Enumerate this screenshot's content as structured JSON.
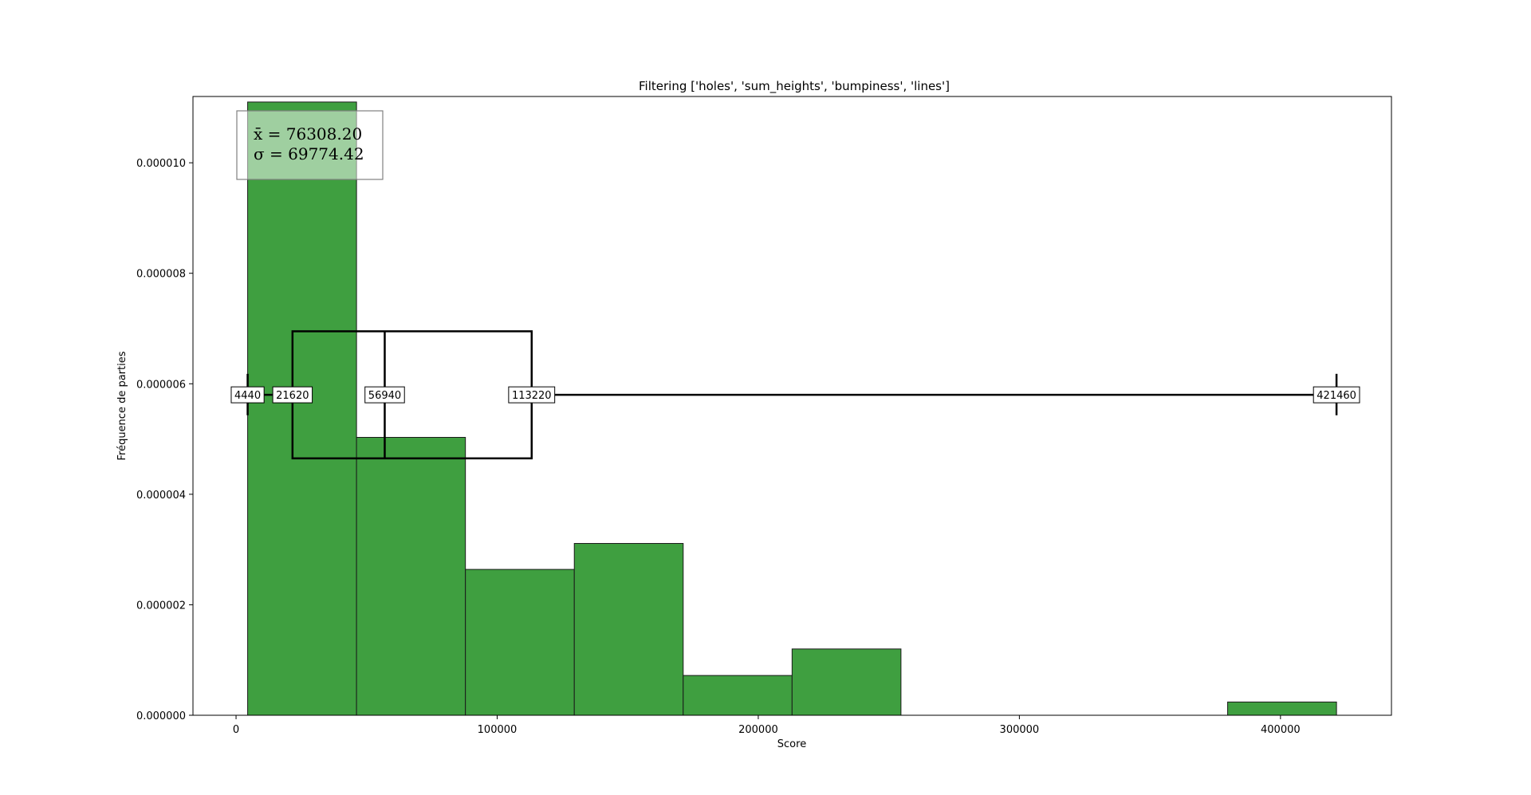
{
  "chart_data": {
    "type": "bar",
    "title": "Filtering ['holes', 'sum_heights', 'bumpiness', 'lines']",
    "xlabel": "Score",
    "ylabel": "Fréquence de parties",
    "xlim": [
      -16500,
      442500
    ],
    "ylim": [
      0,
      1.12e-05
    ],
    "xticks": [
      0,
      100000,
      200000,
      300000,
      400000
    ],
    "xtick_labels": [
      "0",
      "100000",
      "200000",
      "300000",
      "400000"
    ],
    "yticks": [
      0,
      2e-06,
      4e-06,
      6e-06,
      8e-06,
      1e-05
    ],
    "ytick_labels": [
      "0.000000",
      "0.000002",
      "0.000004",
      "0.000006",
      "0.000008",
      "0.000010"
    ],
    "bin_edges": [
      4440,
      46142,
      87844,
      129546,
      171248,
      212950,
      254652,
      296354,
      338056,
      379758,
      421460
    ],
    "values": [
      1.11e-05,
      5.03e-06,
      2.64e-06,
      3.11e-06,
      7.2e-07,
      1.2e-06,
      0,
      0,
      0,
      2.4e-07
    ],
    "bar_color": "#3f9f40",
    "grid": false,
    "boxplot": {
      "min": 4440,
      "q1": 21620,
      "median": 56940,
      "q3": 113220,
      "max": 421460,
      "center_y": 5.8e-06,
      "box_bottom": 4.65e-06,
      "box_top": 6.95e-06,
      "cap_bottom": 5.43e-06,
      "cap_top": 6.18e-06,
      "labels": [
        "4440",
        "21620",
        "56940",
        "113220",
        "421460"
      ]
    },
    "stats_box": {
      "mean_line": "x̄ = 76308.20",
      "std_line": "σ = 69774.42"
    }
  }
}
